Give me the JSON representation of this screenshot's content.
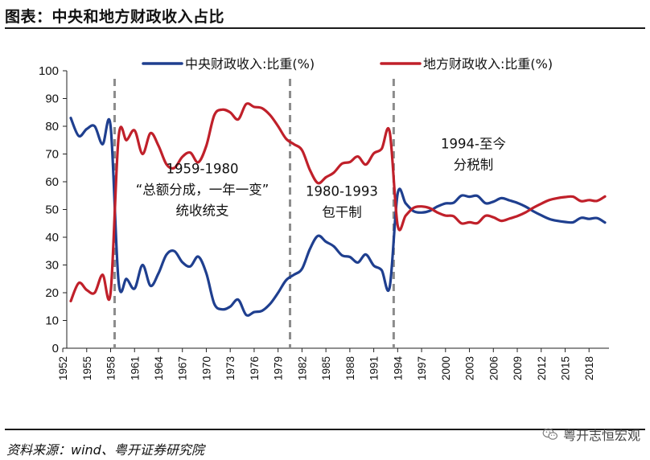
{
  "title": "图表：中央和地方财政收入占比",
  "source": "资料来源：wind、粤开证券研究院",
  "watermark": "粤开志恒宏观",
  "watermark_icon": "wechat-icon",
  "chart_data": {
    "type": "line",
    "title": "图表：中央和地方财政收入占比",
    "xlabel": "",
    "ylabel": "",
    "ylim": [
      0,
      100
    ],
    "yticks": [
      0,
      10,
      20,
      30,
      40,
      50,
      60,
      70,
      80,
      90,
      100
    ],
    "xlim": [
      1953,
      2020
    ],
    "xticks": [
      1952,
      1955,
      1958,
      1961,
      1964,
      1967,
      1970,
      1973,
      1976,
      1979,
      1982,
      1985,
      1988,
      1991,
      1994,
      1997,
      2000,
      2003,
      2006,
      2009,
      2012,
      2015,
      2018
    ],
    "legend_position": "top",
    "grid": false,
    "series": [
      {
        "name": "中央财政收入:比重(%)",
        "color": "#1f3f8f",
        "x": [
          1953,
          1954,
          1955,
          1956,
          1957,
          1958,
          1959,
          1960,
          1961,
          1962,
          1963,
          1964,
          1965,
          1966,
          1967,
          1968,
          1969,
          1970,
          1971,
          1972,
          1973,
          1974,
          1975,
          1976,
          1977,
          1978,
          1979,
          1980,
          1981,
          1982,
          1983,
          1984,
          1985,
          1986,
          1987,
          1988,
          1989,
          1990,
          1991,
          1992,
          1993,
          1994,
          1995,
          1996,
          1997,
          1998,
          1999,
          2000,
          2001,
          2002,
          2003,
          2004,
          2005,
          2006,
          2007,
          2008,
          2009,
          2010,
          2011,
          2012,
          2013,
          2014,
          2015,
          2016,
          2017,
          2018,
          2019,
          2020
        ],
        "values": [
          83,
          76.5,
          79,
          80,
          73.5,
          80,
          24,
          25,
          21.5,
          30,
          22.5,
          27,
          33.7,
          35,
          31,
          29.5,
          33,
          27,
          16,
          14,
          15,
          17.5,
          12,
          13,
          13.5,
          16,
          20,
          24.5,
          26.5,
          28.6,
          35.8,
          40.5,
          38.4,
          36.7,
          33.5,
          32.9,
          30.9,
          33.8,
          29.8,
          28.1,
          22,
          55.7,
          52.2,
          49.4,
          48.9,
          49.5,
          51.1,
          52.2,
          52.4,
          55,
          54.6,
          54.9,
          52.3,
          52.8,
          54.1,
          53.3,
          52.4,
          51.1,
          49.4,
          47.9,
          46.6,
          45.9,
          45.5,
          45.4,
          47,
          46.6,
          46.9,
          45.3
        ]
      },
      {
        "name": "地方财政收入:比重(%)",
        "color": "#c0202a",
        "x": [
          1953,
          1954,
          1955,
          1956,
          1957,
          1958,
          1959,
          1960,
          1961,
          1962,
          1963,
          1964,
          1965,
          1966,
          1967,
          1968,
          1969,
          1970,
          1971,
          1972,
          1973,
          1974,
          1975,
          1976,
          1977,
          1978,
          1979,
          1980,
          1981,
          1982,
          1983,
          1984,
          1985,
          1986,
          1987,
          1988,
          1989,
          1990,
          1991,
          1992,
          1993,
          1994,
          1995,
          1996,
          1997,
          1998,
          1999,
          2000,
          2001,
          2002,
          2003,
          2004,
          2005,
          2006,
          2007,
          2008,
          2009,
          2010,
          2011,
          2012,
          2013,
          2014,
          2015,
          2016,
          2017,
          2018,
          2019,
          2020
        ],
        "values": [
          17,
          23.5,
          21,
          20,
          26.5,
          20,
          76,
          75,
          78.5,
          70,
          77.5,
          73,
          66.3,
          65,
          69,
          70.5,
          67,
          73,
          84,
          86,
          85,
          82.5,
          88,
          87,
          86.5,
          84,
          80,
          75.5,
          73.5,
          71.4,
          64.2,
          59.5,
          61.6,
          63.3,
          66.5,
          67.1,
          69.1,
          66.2,
          70.2,
          71.9,
          78,
          44.3,
          47.8,
          50.6,
          51.1,
          50.5,
          48.9,
          47.8,
          47.6,
          45,
          45.4,
          45.1,
          47.7,
          47.2,
          45.9,
          46.7,
          47.6,
          48.9,
          50.6,
          52.1,
          53.4,
          54.1,
          54.5,
          54.6,
          53,
          53.4,
          53.1,
          54.7
        ]
      }
    ],
    "dividers": [
      1958.5,
      1980.5,
      1993.5
    ],
    "annotations": [
      {
        "id": "p1",
        "lines": [
          "1959-1980",
          "“总额分成，一年一变”",
          "统收统支"
        ],
        "x": 1969.5,
        "y": 63
      },
      {
        "id": "p2",
        "lines": [
          "1980-1993",
          "包干制"
        ],
        "x": 1987,
        "y": 55
      },
      {
        "id": "p3",
        "lines": [
          "1994-至今",
          "分税制"
        ],
        "x": 2003.5,
        "y": 72
      }
    ]
  }
}
